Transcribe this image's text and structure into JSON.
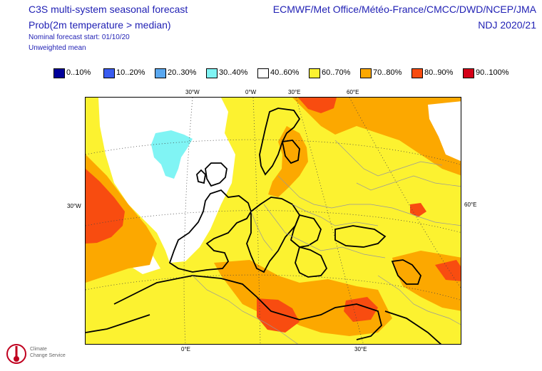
{
  "header": {
    "title": "C3S multi-system seasonal forecast",
    "subtitle": "Prob(2m temperature > median)",
    "nominal_start": "Nominal forecast start: 01/10/20",
    "weighting": "Unweighted mean",
    "centres": "ECMWF/Met Office/Météo-France/CMCC/DWD/NCEP/JMA",
    "period": "NDJ 2020/21"
  },
  "legend": [
    {
      "label": "0..10%",
      "color": "#00009a"
    },
    {
      "label": "10..20%",
      "color": "#3a5cf0"
    },
    {
      "label": "20..30%",
      "color": "#5aa8f0"
    },
    {
      "label": "30..40%",
      "color": "#80f4f4"
    },
    {
      "label": "40..60%",
      "color": "#ffffff"
    },
    {
      "label": "60..70%",
      "color": "#fcf230"
    },
    {
      "label": "70..80%",
      "color": "#fca800"
    },
    {
      "label": "80..90%",
      "color": "#f84c10"
    },
    {
      "label": "90..100%",
      "color": "#d40018"
    }
  ],
  "map": {
    "region": "Europe",
    "graticule_labels": {
      "top": [
        "30°W",
        "0°W",
        "30°E",
        "60°E"
      ],
      "left": [
        "30°W"
      ],
      "right": [
        "60°E"
      ],
      "bottom": [
        "0°E",
        "30°E"
      ]
    }
  },
  "logo": {
    "icon": "climate-change-service-logo-icon",
    "lines": [
      "Climate",
      "Change Service"
    ]
  }
}
